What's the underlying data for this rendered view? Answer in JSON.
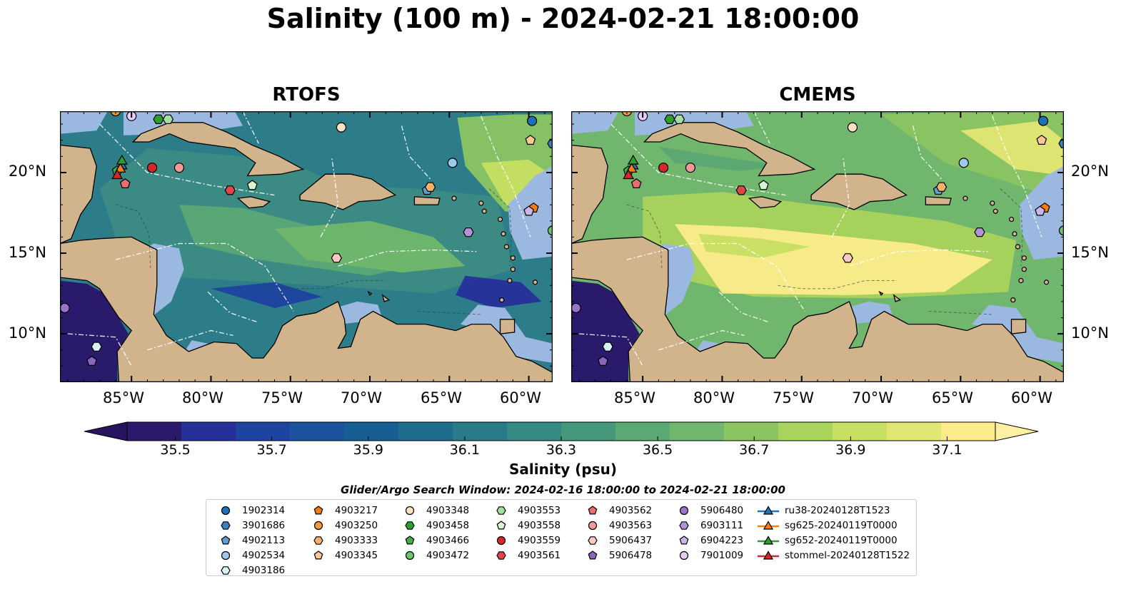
{
  "title": "Salinity (100 m) - 2024-02-21 18:00:00",
  "panels": [
    {
      "title": "RTOFS",
      "scheme": "rtofs"
    },
    {
      "title": "CMEMS",
      "scheme": "cmems"
    }
  ],
  "map_extent": {
    "lon_min": -89.5,
    "lon_max": -58.5,
    "lat_min": 7,
    "lat_max": 23.8
  },
  "lat_ticks": [
    {
      "value": 20,
      "label": "20°N"
    },
    {
      "value": 15,
      "label": "15°N"
    },
    {
      "value": 10,
      "label": "10°N"
    }
  ],
  "lon_ticks": [
    {
      "value": -85,
      "label": "85°W"
    },
    {
      "value": -80,
      "label": "80°W"
    },
    {
      "value": -75,
      "label": "75°W"
    },
    {
      "value": -70,
      "label": "70°W"
    },
    {
      "value": -65,
      "label": "65°W"
    },
    {
      "value": -60,
      "label": "60°W"
    }
  ],
  "colorbar": {
    "label": "Salinity (psu)",
    "min": 35.4,
    "max": 37.2,
    "ticks": [
      "35.5",
      "35.7",
      "35.9",
      "36.1",
      "36.3",
      "36.5",
      "36.7",
      "36.9",
      "37.1"
    ],
    "colors": [
      "#2b1a6b",
      "#26309a",
      "#1f43a0",
      "#1b539c",
      "#175f92",
      "#1f6d8d",
      "#2a7b8a",
      "#368a84",
      "#46987b",
      "#5aa874",
      "#70b66c",
      "#8bc562",
      "#a8d35c",
      "#c7df62",
      "#e2e673",
      "#fbeb8b"
    ],
    "under_color": "#26145e",
    "over_color": "#fdf0a2"
  },
  "colors": {
    "land": "#d2b48c",
    "shelf": "#9bb8e0",
    "deep": "#2a1a6c"
  },
  "search_window": "Glider/Argo Search Window: 2024-02-16 18:00:00 to 2024-02-21 18:00:00",
  "legend_columns": [
    [
      {
        "label": "1902314",
        "marker": "circle",
        "color": "#1f6fb4"
      },
      {
        "label": "3901686",
        "marker": "hexagon",
        "color": "#3a7fc0"
      },
      {
        "label": "4902113",
        "marker": "pentagon",
        "color": "#5e9fd6"
      },
      {
        "label": "4902534",
        "marker": "circle",
        "color": "#9cc9ec"
      },
      {
        "label": "4903186",
        "marker": "hexagon",
        "color": "#d8f0f8"
      }
    ],
    [
      {
        "label": "4903217",
        "marker": "pentagon",
        "color": "#f07c12"
      },
      {
        "label": "4903250",
        "marker": "circle",
        "color": "#f39a3c"
      },
      {
        "label": "4903333",
        "marker": "hexagon",
        "color": "#f7b26a"
      },
      {
        "label": "4903345",
        "marker": "pentagon",
        "color": "#fac896"
      }
    ],
    [
      {
        "label": "4903348",
        "marker": "circle",
        "color": "#fde0c2"
      },
      {
        "label": "4903458",
        "marker": "hexagon",
        "color": "#2ca02c"
      },
      {
        "label": "4903466",
        "marker": "pentagon",
        "color": "#44b044"
      },
      {
        "label": "4903472",
        "marker": "circle",
        "color": "#6cc46c"
      }
    ],
    [
      {
        "label": "4903553",
        "marker": "hexagon",
        "color": "#a6e0a0"
      },
      {
        "label": "4903558",
        "marker": "pentagon",
        "color": "#d6f5d0"
      },
      {
        "label": "4903559",
        "marker": "circle",
        "color": "#d62728"
      },
      {
        "label": "4903561",
        "marker": "hexagon",
        "color": "#e04646"
      }
    ],
    [
      {
        "label": "4903562",
        "marker": "pentagon",
        "color": "#ea6e6e"
      },
      {
        "label": "4903563",
        "marker": "circle",
        "color": "#f29a96"
      },
      {
        "label": "5906437",
        "marker": "hexagon",
        "color": "#fbc8c2"
      },
      {
        "label": "5906478",
        "marker": "pentagon",
        "color": "#8a67bd"
      }
    ],
    [
      {
        "label": "5906480",
        "marker": "circle",
        "color": "#9a74c8"
      },
      {
        "label": "6903111",
        "marker": "hexagon",
        "color": "#b293d6"
      },
      {
        "label": "6904223",
        "marker": "pentagon",
        "color": "#cdb5e6"
      },
      {
        "label": "7901009",
        "marker": "circle",
        "color": "#e7cdf6"
      }
    ],
    [
      {
        "label": "ru38-20240128T1523",
        "marker": "triangle-line",
        "color": "#1f77b4"
      },
      {
        "label": "sg625-20240119T0000",
        "marker": "triangle-line",
        "color": "#ff7f0e"
      },
      {
        "label": "sg652-20240119T0000",
        "marker": "triangle-line",
        "color": "#2ca02c"
      },
      {
        "label": "stommel-20240128T1522",
        "marker": "triangle-line",
        "color": "#d62728"
      }
    ]
  ],
  "floats": [
    {
      "id": "1902314",
      "marker": "circle",
      "color": "#1f6fb4",
      "lon": -59.8,
      "lat": 23.2
    },
    {
      "id": "3901686",
      "marker": "hexagon",
      "color": "#3a7fc0",
      "lon": -58.5,
      "lat": 21.8
    },
    {
      "id": "4902534",
      "marker": "circle",
      "color": "#9cc9ec",
      "lon": -64.8,
      "lat": 20.6
    },
    {
      "id": "4902113",
      "marker": "pentagon",
      "color": "#5e9fd6",
      "lon": -66.4,
      "lat": 18.9
    },
    {
      "id": "4903333",
      "marker": "hexagon",
      "color": "#f7b26a",
      "lon": -66.2,
      "lat": 19.1
    },
    {
      "id": "4903217",
      "marker": "pentagon",
      "color": "#f07c12",
      "lon": -59.7,
      "lat": 17.8
    },
    {
      "id": "6904223",
      "marker": "pentagon",
      "color": "#cdb5e6",
      "lon": -60.0,
      "lat": 17.6
    },
    {
      "id": "4903345",
      "marker": "pentagon",
      "color": "#fac896",
      "lon": -59.9,
      "lat": 22.0
    },
    {
      "id": "4903472",
      "marker": "circle",
      "color": "#6cc46c",
      "lon": -58.5,
      "lat": 16.4
    },
    {
      "id": "6903111",
      "marker": "hexagon",
      "color": "#b293d6",
      "lon": -63.8,
      "lat": 16.3
    },
    {
      "id": "4903348",
      "marker": "circle",
      "color": "#fde0c2",
      "lon": -71.8,
      "lat": 22.8
    },
    {
      "id": "5906437",
      "marker": "hexagon",
      "color": "#fbc8c2",
      "lon": -72.1,
      "lat": 14.7
    },
    {
      "id": "4903561",
      "marker": "hexagon",
      "color": "#e04646",
      "lon": -78.8,
      "lat": 18.9
    },
    {
      "id": "4903558",
      "marker": "pentagon",
      "color": "#d6f5d0",
      "lon": -77.4,
      "lat": 19.2
    },
    {
      "id": "4903559",
      "marker": "circle",
      "color": "#d62728",
      "lon": -83.7,
      "lat": 20.3
    },
    {
      "id": "4903563",
      "marker": "circle",
      "color": "#f29a96",
      "lon": -82.0,
      "lat": 20.3
    },
    {
      "id": "4903562",
      "marker": "pentagon",
      "color": "#ea6e6e",
      "lon": -85.4,
      "lat": 19.3
    },
    {
      "id": "4903466",
      "marker": "pentagon",
      "color": "#44b044",
      "lon": -85.9,
      "lat": 20.1
    },
    {
      "id": "4903458",
      "marker": "hexagon",
      "color": "#2ca02c",
      "lon": -83.3,
      "lat": 23.3
    },
    {
      "id": "4903553",
      "marker": "hexagon",
      "color": "#a6e0a0",
      "lon": -82.7,
      "lat": 23.3
    },
    {
      "id": "4903250",
      "marker": "circle",
      "color": "#f39a3c",
      "lon": -86.0,
      "lat": 23.8
    },
    {
      "id": "7901009",
      "marker": "circle",
      "color": "#e7cdf6",
      "lon": -85.0,
      "lat": 23.5
    },
    {
      "id": "5906480",
      "marker": "circle",
      "color": "#9a74c8",
      "lon": -89.2,
      "lat": 11.6
    },
    {
      "id": "4903186",
      "marker": "hexagon",
      "color": "#d8f0f8",
      "lon": -87.2,
      "lat": 9.2
    },
    {
      "id": "5906478",
      "marker": "pentagon",
      "color": "#8a67bd",
      "lon": -87.5,
      "lat": 8.3
    }
  ],
  "gliders": [
    {
      "id": "ru38-20240128T1523",
      "color": "#1f77b4",
      "lon": -85.6,
      "lat": 20.4
    },
    {
      "id": "sg625-20240119T0000",
      "color": "#ff7f0e",
      "lon": -85.7,
      "lat": 20.2
    },
    {
      "id": "sg652-20240119T0000",
      "color": "#2ca02c",
      "lon": -85.6,
      "lat": 20.7
    },
    {
      "id": "stommel-20240128T1522",
      "color": "#d62728",
      "lon": -85.9,
      "lat": 19.8
    }
  ]
}
